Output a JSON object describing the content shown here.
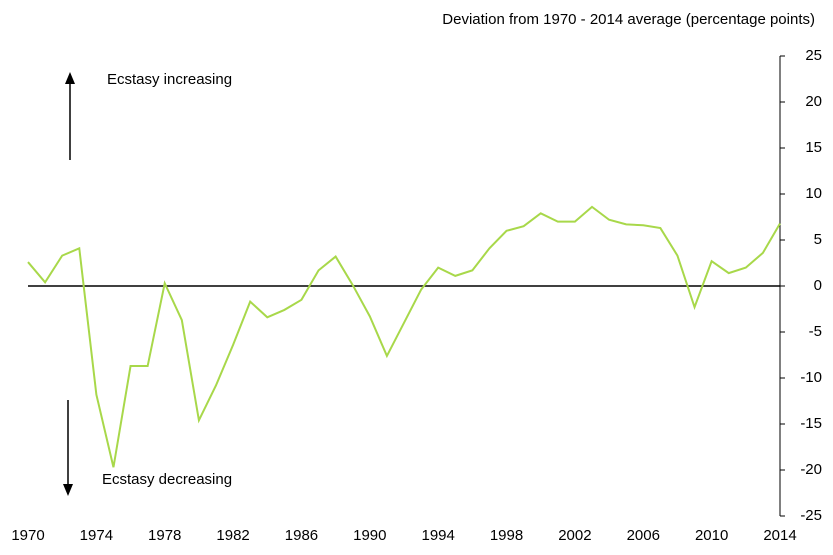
{
  "chart_data": {
    "type": "line",
    "y_axis_label": "Deviation from 1970 - 2014 average (percentage points)",
    "annotations": [
      "Ecstasy increasing",
      "Ecstasy decreasing"
    ],
    "x": [
      1970,
      1971,
      1972,
      1973,
      1974,
      1975,
      1976,
      1977,
      1978,
      1979,
      1980,
      1981,
      1982,
      1983,
      1984,
      1985,
      1986,
      1987,
      1988,
      1989,
      1990,
      1991,
      1992,
      1993,
      1994,
      1995,
      1996,
      1997,
      1998,
      1999,
      2000,
      2001,
      2002,
      2003,
      2004,
      2005,
      2006,
      2007,
      2008,
      2009,
      2010,
      2011,
      2012,
      2013,
      2014
    ],
    "series": [
      {
        "color": "#a8d84a",
        "values": [
          2.6,
          0.4,
          3.3,
          4.1,
          -11.8,
          -19.7,
          -8.7,
          -8.7,
          0.3,
          -3.7,
          -14.6,
          -10.8,
          -6.4,
          -1.7,
          -3.4,
          -2.6,
          -1.5,
          1.7,
          3.2,
          0.1,
          -3.3,
          -7.6,
          -4.0,
          -0.4,
          2.0,
          1.1,
          1.7,
          4.1,
          6.0,
          6.5,
          7.9,
          7.0,
          7.0,
          8.6,
          7.2,
          6.7,
          6.6,
          6.3,
          3.3,
          -2.3,
          2.7,
          1.4,
          2.0,
          3.6,
          6.8
        ]
      }
    ],
    "xlim": [
      1970,
      2014
    ],
    "xticks": [
      1970,
      1974,
      1978,
      1982,
      1986,
      1990,
      1994,
      1998,
      2002,
      2006,
      2010,
      2014
    ],
    "ylim": [
      -25,
      25
    ],
    "yticks": [
      -25,
      -20,
      -15,
      -10,
      -5,
      0,
      5,
      10,
      15,
      20,
      25
    ]
  }
}
